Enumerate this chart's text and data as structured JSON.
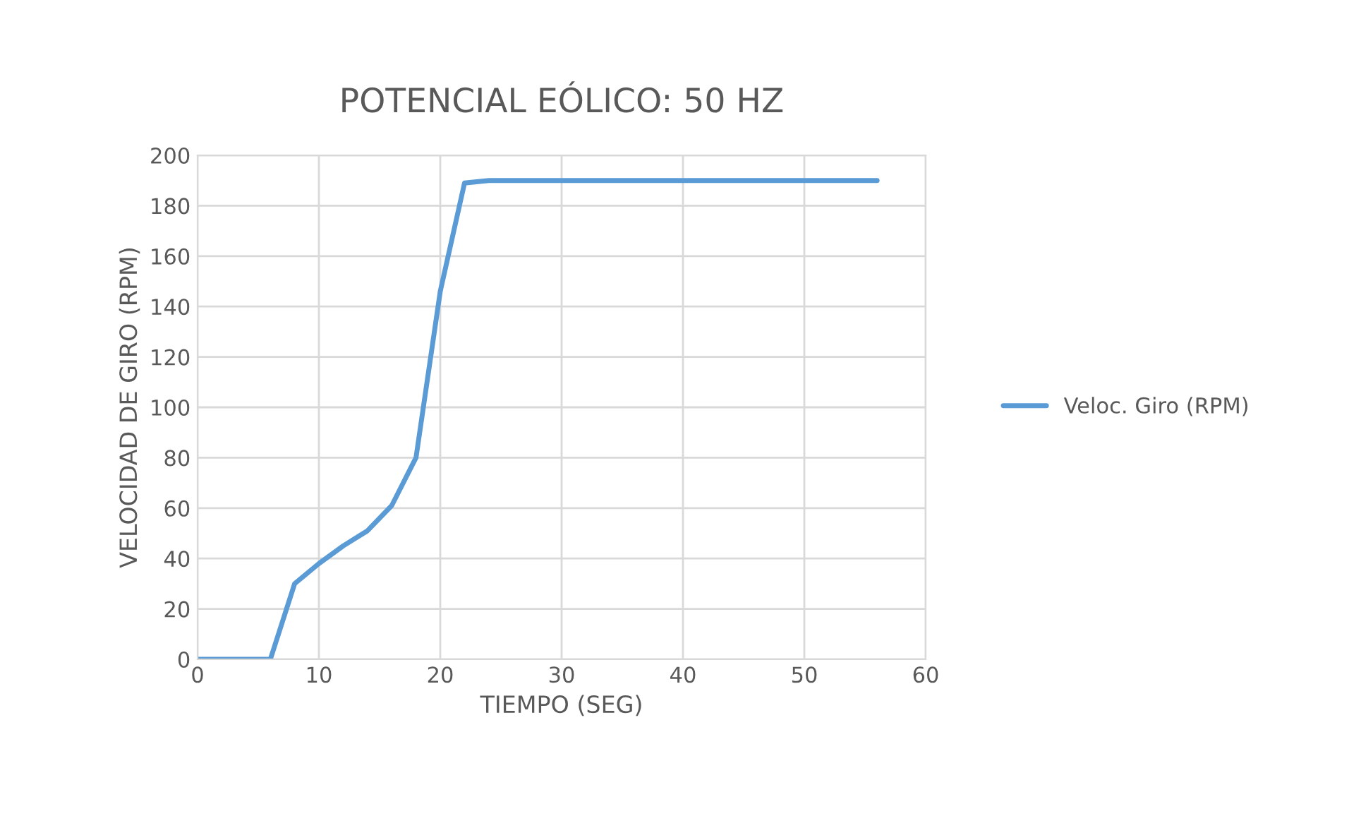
{
  "chart_data": {
    "type": "line",
    "title": "POTENCIAL EÓLICO: 50 HZ",
    "xlabel": "TIEMPO (SEG)",
    "ylabel": "VELOCIDAD DE GIRO (RPM)",
    "x": [
      0,
      2,
      4,
      6,
      8,
      10,
      12,
      14,
      16,
      18,
      20,
      22,
      24,
      26,
      28,
      30,
      32,
      34,
      36,
      38,
      40,
      42,
      44,
      46,
      48,
      50,
      52,
      54,
      56
    ],
    "series": [
      {
        "name": "Veloc. Giro (RPM)",
        "color": "#5b9bd5",
        "values": [
          0,
          0,
          0,
          0,
          30,
          38,
          45,
          51,
          61,
          80,
          146,
          189,
          190,
          190,
          190,
          190,
          190,
          190,
          190,
          190,
          190,
          190,
          190,
          190,
          190,
          190,
          190,
          190,
          190
        ]
      }
    ],
    "xlim": [
      0,
      60
    ],
    "xticks": [
      0,
      10,
      20,
      30,
      40,
      50,
      60
    ],
    "ylim": [
      0,
      200
    ],
    "yticks": [
      0,
      20,
      40,
      60,
      80,
      100,
      120,
      140,
      160,
      180,
      200
    ],
    "grid": true,
    "legend": "right",
    "marker": "none",
    "line_style": "solid"
  }
}
